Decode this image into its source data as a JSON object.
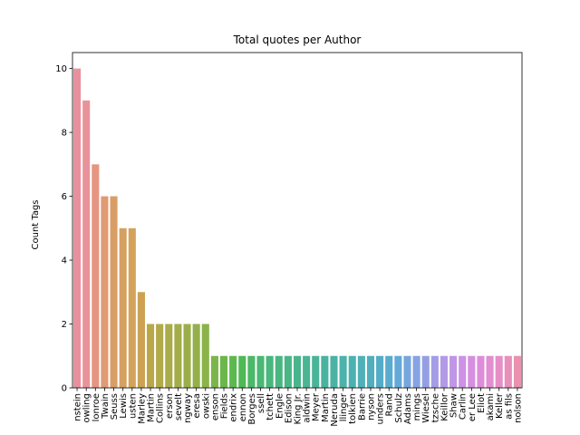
{
  "chart_data": {
    "type": "bar",
    "title": "Total quotes per Author",
    "xlabel": "",
    "ylabel": "Count Tags",
    "ylim": [
      0,
      10.5
    ],
    "yticks": [
      0,
      2,
      4,
      6,
      8,
      10
    ],
    "grid": false,
    "categories": [
      "nstein",
      "owling",
      "lonroe",
      "Twain",
      "Seuss",
      "Lewis",
      "usten",
      "Marley",
      "Martin",
      "Collins",
      "erson",
      "sevelt",
      "ngway",
      "eresa",
      "owski",
      "enson",
      "Fields",
      "endrix",
      "ennon",
      "Borges",
      "ssell",
      "tchett",
      "Engle",
      "Edison",
      "King Jr.",
      "aldwin",
      "Meyer",
      "Martin",
      "Neruda",
      "llinger",
      "tolkien",
      "Barrie",
      "nyson",
      "unders",
      "Rand",
      "Schulz",
      "Adams",
      "mings",
      "Wiesel",
      "tzsche",
      "Keillor",
      "Shaw",
      "Carlin",
      "er Lee",
      "Eliot",
      "akami",
      "Keller",
      "as fils",
      "nolson"
    ],
    "values": [
      10,
      9,
      7,
      6,
      6,
      5,
      5,
      3,
      2,
      2,
      2,
      2,
      2,
      2,
      2,
      1,
      1,
      1,
      1,
      1,
      1,
      1,
      1,
      1,
      1,
      1,
      1,
      1,
      1,
      1,
      1,
      1,
      1,
      1,
      1,
      1,
      1,
      1,
      1,
      1,
      1,
      1,
      1,
      1,
      1,
      1,
      1,
      1,
      1
    ],
    "colors": [
      "#e8919e",
      "#e8939a",
      "#e49681",
      "#e09a74",
      "#d99d66",
      "#d6a060",
      "#d4a25a",
      "#cca252",
      "#b9a74a",
      "#b2a949",
      "#aaab4a",
      "#a3ad49",
      "#9cae4a",
      "#93b04a",
      "#8ab349",
      "#7cb54a",
      "#6cb74c",
      "#5db84f",
      "#4fb955",
      "#4cb869",
      "#4bb874",
      "#4ab77c",
      "#4ab682",
      "#4ab688",
      "#4ab58d",
      "#4ab593",
      "#4ab498",
      "#4ab39e",
      "#4bb2a4",
      "#4cb2aa",
      "#4db1b1",
      "#4fb0b8",
      "#51aebf",
      "#54adc7",
      "#59abd0",
      "#64a9d8",
      "#76a6de",
      "#86a3e2",
      "#95a0e4",
      "#a49de6",
      "#b39ae6",
      "#c096e6",
      "#cc92e4",
      "#d68fe0",
      "#de8ed9",
      "#e38ed0",
      "#e68fc6",
      "#e890bb",
      "#e991ae"
    ]
  }
}
